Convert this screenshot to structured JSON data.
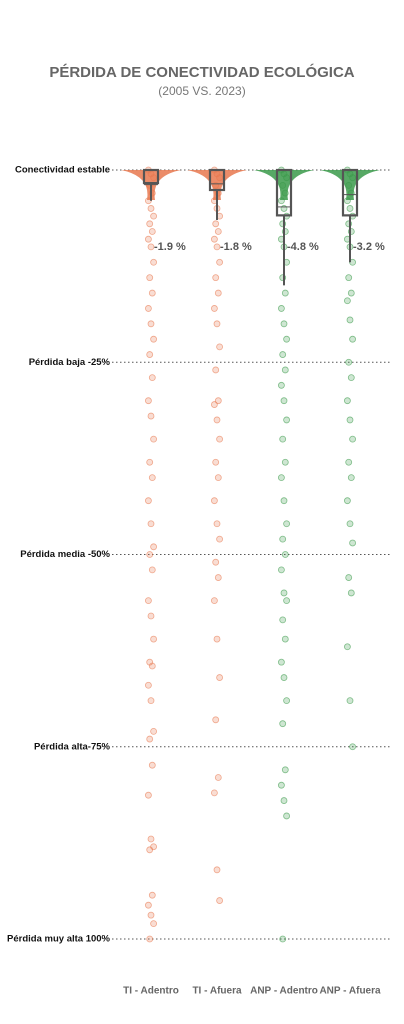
{
  "chart_data": {
    "type": "swarm-box",
    "title": "PÉRDIDA DE CONECTIVIDAD ECOLÓGICA",
    "subtitle": "(2005 VS. 2023)",
    "ylim": [
      -100,
      0
    ],
    "yticks": [
      {
        "value": 0,
        "label": "Conectividad estable"
      },
      {
        "value": -25,
        "label": "Pérdida baja -25%"
      },
      {
        "value": -50,
        "label": "Pérdida media -50%"
      },
      {
        "value": -75,
        "label": "Pérdida alta-75%"
      },
      {
        "value": -100,
        "label": "Pérdida muy alta 100%"
      }
    ],
    "grid": true,
    "series": [
      {
        "name": "TI - Adentro",
        "color": "#e8784f",
        "values": [
          0,
          -0.5,
          -1,
          -2,
          -3,
          -4,
          -5,
          -6,
          -7,
          -8,
          -9,
          -10,
          -12,
          -14,
          -16,
          -18,
          -20,
          -22,
          -24,
          -27,
          -30,
          -32,
          -35,
          -38,
          -40,
          -43,
          -46,
          -49,
          -50,
          -52,
          -56,
          -58,
          -61,
          -64,
          -64.5,
          -67,
          -69,
          -73,
          -74,
          -77.4,
          -81.3,
          -87,
          -88,
          -88.4,
          -94.3,
          -95.6,
          -96.9,
          -98,
          -100
        ],
        "box": {
          "upper": 0,
          "lower": -1.7,
          "whisker": -4
        },
        "mean": -1.9,
        "mean_label": "-1.9 %"
      },
      {
        "name": "TI - Afuera",
        "color": "#e8784f",
        "values": [
          0,
          -0.5,
          -1,
          -2,
          -3,
          -4,
          -5,
          -6,
          -7,
          -8,
          -9,
          -10,
          -12,
          -14,
          -16,
          -18,
          -20,
          -23,
          -26,
          -30,
          -30.5,
          -32.5,
          -35,
          -38,
          -40,
          -43,
          -46,
          -48,
          -51,
          -53,
          -56,
          -61,
          -66,
          -71.5,
          -79,
          -81,
          -91,
          -95
        ],
        "box": {
          "upper": 0,
          "lower": -2.6,
          "whisker": -6.5
        },
        "mean": -1.8,
        "mean_label": "-1.8 %"
      },
      {
        "name": "ANP - Adentro",
        "color": "#3a9a4a",
        "values": [
          0,
          -0.5,
          -1,
          -2,
          -3,
          -4,
          -5,
          -6,
          -7,
          -8,
          -9,
          -10,
          -12,
          -14,
          -16,
          -18,
          -20,
          -22,
          -24,
          -26,
          -28,
          -30,
          -32.5,
          -35,
          -38,
          -40,
          -43,
          -46,
          -48,
          -50,
          -52,
          -55,
          -56,
          -58.5,
          -61,
          -64,
          -66,
          -69,
          -72,
          -78,
          -80,
          -82,
          -84,
          -100
        ],
        "box": {
          "upper": 0,
          "lower": -5.9,
          "whisker": -15
        },
        "mean": -4.8,
        "mean_label": "-4.8 %"
      },
      {
        "name": "ANP - Afuera",
        "color": "#3a9a4a",
        "values": [
          0,
          -0.5,
          -1,
          -2,
          -3,
          -4,
          -5,
          -6,
          -7,
          -8,
          -9,
          -10,
          -12,
          -14,
          -16,
          -17,
          -19.5,
          -22,
          -25,
          -27,
          -30,
          -32.5,
          -35,
          -38,
          -40,
          -43,
          -46,
          -48.5,
          -53,
          -55,
          -62,
          -69,
          -75
        ],
        "box": {
          "upper": 0,
          "lower": -5.9,
          "whisker": -12
        },
        "mean": -3.2,
        "mean_label": "-3.2 %"
      }
    ]
  }
}
